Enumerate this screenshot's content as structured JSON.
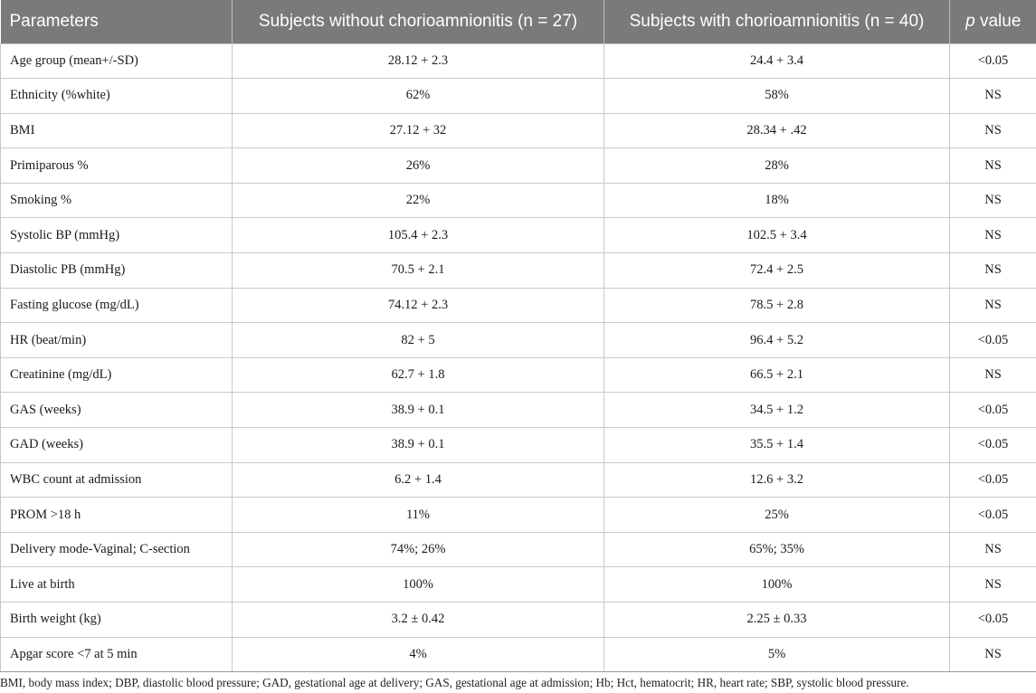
{
  "table": {
    "headers": {
      "parameters": "Parameters",
      "without": "Subjects without chorioamnionitis (n = 27)",
      "with": "Subjects with chorioamnionitis (n = 40)",
      "p_italic": "p",
      "p_rest": " value"
    },
    "rows": [
      {
        "param": "Age group (mean+/-SD)",
        "without": "28.12 + 2.3",
        "with": "24.4 + 3.4",
        "p": "<0.05"
      },
      {
        "param": "Ethnicity (%white)",
        "without": "62%",
        "with": "58%",
        "p": "NS"
      },
      {
        "param": "BMI",
        "without": "27.12 + 32",
        "with": "28.34 + .42",
        "p": "NS"
      },
      {
        "param": "Primiparous %",
        "without": "26%",
        "with": "28%",
        "p": "NS"
      },
      {
        "param": "Smoking %",
        "without": "22%",
        "with": "18%",
        "p": "NS"
      },
      {
        "param": "Systolic BP (mmHg)",
        "without": "105.4 + 2.3",
        "with": "102.5 + 3.4",
        "p": "NS"
      },
      {
        "param": "Diastolic PB (mmHg)",
        "without": "70.5 + 2.1",
        "with": "72.4 + 2.5",
        "p": "NS"
      },
      {
        "param": "Fasting glucose (mg/dL)",
        "without": "74.12 + 2.3",
        "with": "78.5 + 2.8",
        "p": "NS"
      },
      {
        "param": "HR (beat/min)",
        "without": "82 + 5",
        "with": "96.4 + 5.2",
        "p": "<0.05"
      },
      {
        "param": "Creatinine (mg/dL)",
        "without": "62.7 + 1.8",
        "with": "66.5 + 2.1",
        "p": "NS"
      },
      {
        "param": "GAS (weeks)",
        "without": "38.9 + 0.1",
        "with": "34.5 + 1.2",
        "p": "<0.05"
      },
      {
        "param": "GAD (weeks)",
        "without": "38.9 + 0.1",
        "with": "35.5 + 1.4",
        "p": "<0.05"
      },
      {
        "param": "WBC count at admission",
        "without": "6.2 + 1.4",
        "with": "12.6 + 3.2",
        "p": "<0.05"
      },
      {
        "param": "PROM >18 h",
        "without": "11%",
        "with": "25%",
        "p": "<0.05"
      },
      {
        "param": "Delivery mode-Vaginal; C-section",
        "without": "74%; 26%",
        "with": "65%; 35%",
        "p": "NS"
      },
      {
        "param": "Live at birth",
        "without": "100%",
        "with": "100%",
        "p": "NS"
      },
      {
        "param": "Birth weight (kg)",
        "without": "3.2 ± 0.42",
        "with": "2.25 ± 0.33",
        "p": "<0.05"
      },
      {
        "param": "Apgar score <7 at 5 min",
        "without": "4%",
        "with": "5%",
        "p": "NS"
      }
    ]
  },
  "footnote": "BMI, body mass index; DBP, diastolic blood pressure; GAD, gestational age at delivery; GAS, gestational age at admission; Hb; Hct, hematocrit; HR, heart rate; SBP, systolic blood pressure.",
  "colors": {
    "header_bg": "#7a7a7a",
    "header_text": "#ffffff",
    "grid": "#c9c9c9"
  }
}
